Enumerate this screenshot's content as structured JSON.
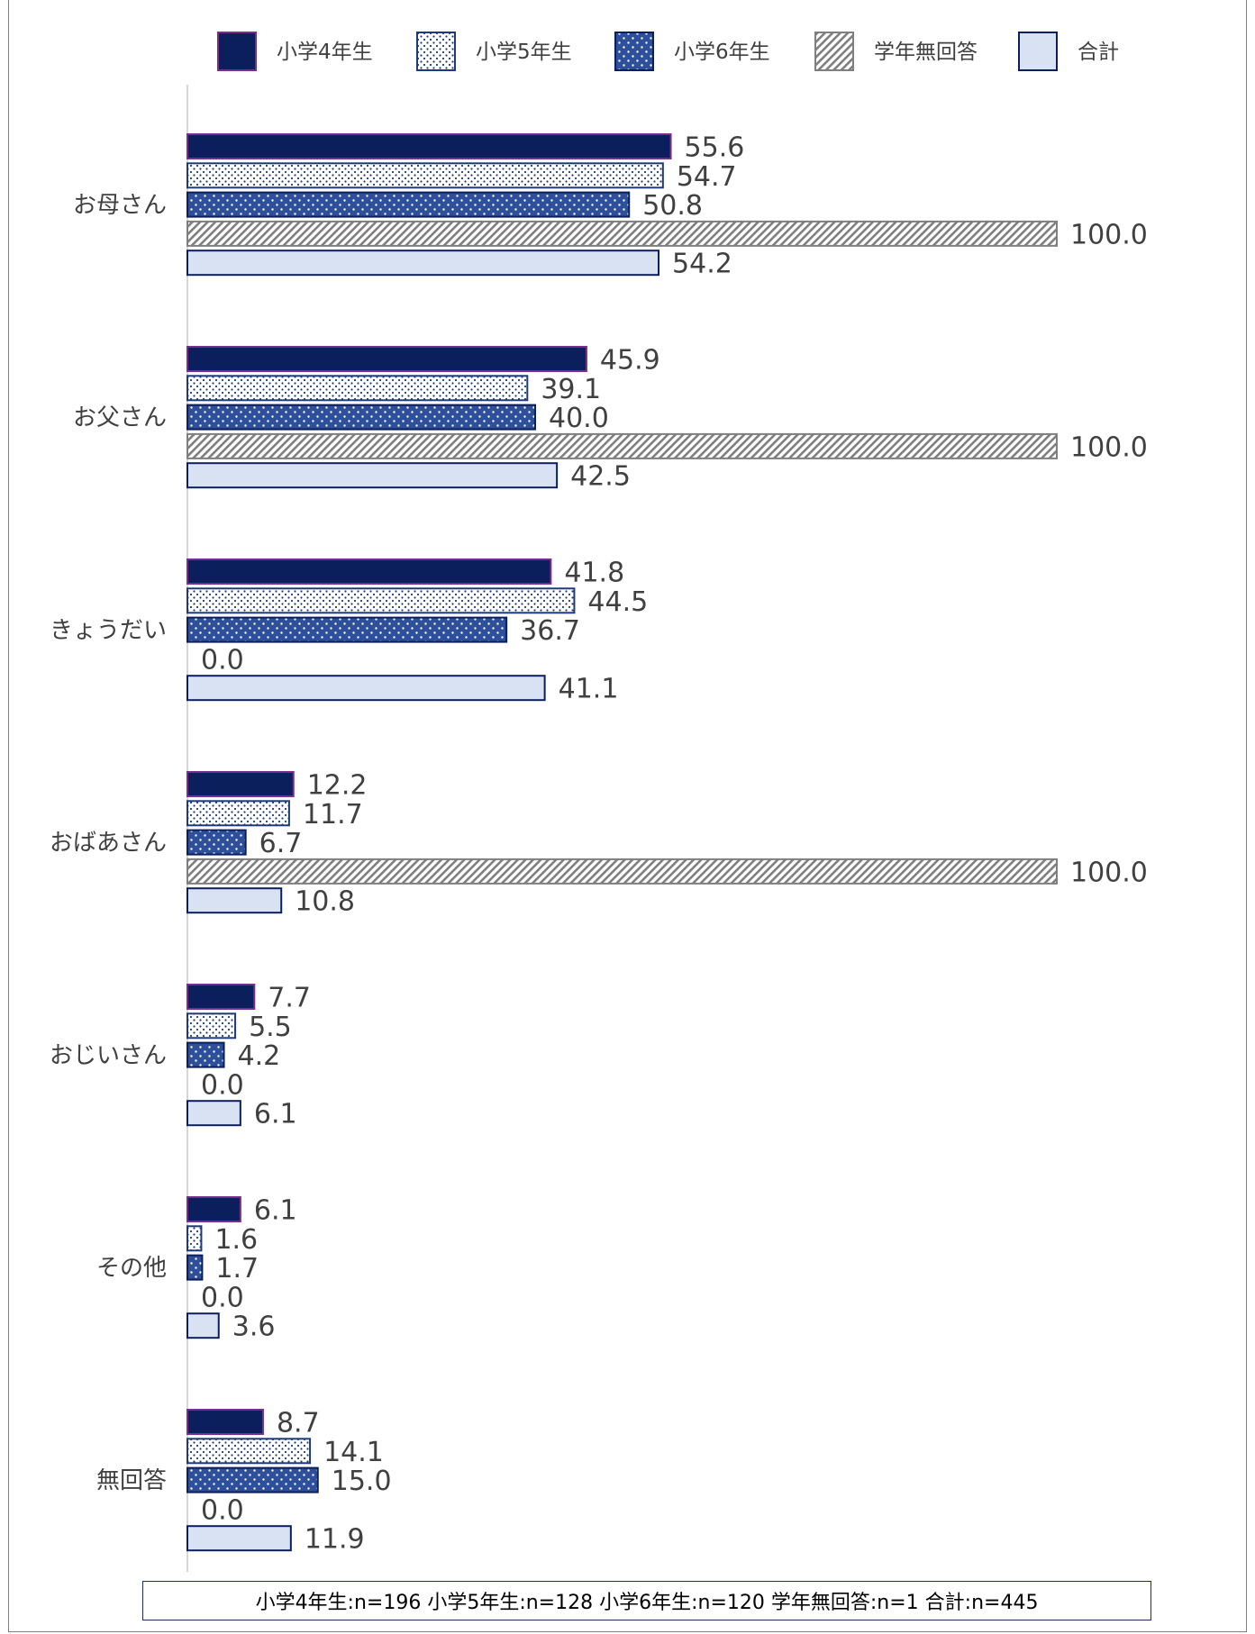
{
  "chart_data": {
    "type": "bar",
    "orientation": "horizontal",
    "categories": [
      "お母さん",
      "お父さん",
      "きょうだい",
      "おばあさん",
      "おじいさん",
      "その他",
      "無回答"
    ],
    "series": [
      {
        "name": "小学4年生",
        "values": [
          55.6,
          45.9,
          41.8,
          12.2,
          7.7,
          6.1,
          8.7
        ],
        "labels": [
          "55.6",
          "45.9",
          "41.8",
          "12.2",
          "7.7",
          "6.1",
          "8.7"
        ],
        "pattern": "solid",
        "fill": "#0a1f5c",
        "stroke": "#7a2d8a"
      },
      {
        "name": "小学5年生",
        "values": [
          54.7,
          39.1,
          44.5,
          11.7,
          5.5,
          1.6,
          14.1
        ],
        "labels": [
          "54.7",
          "39.1",
          "44.5",
          "11.7",
          "5.5",
          "1.6",
          "14.1"
        ],
        "pattern": "dots-on-white",
        "fill": "#ffffff",
        "stroke": "#1f3a7a"
      },
      {
        "name": "小学6年生",
        "values": [
          50.8,
          40.0,
          36.7,
          6.7,
          4.2,
          1.7,
          15.0
        ],
        "labels": [
          "50.8",
          "40.0",
          "36.7",
          "6.7",
          "4.2",
          "1.7",
          "15.0"
        ],
        "pattern": "dots-on-blue",
        "fill": "#2e4f9a",
        "stroke": "#0a1f5c"
      },
      {
        "name": "学年無回答",
        "values": [
          100.0,
          100.0,
          0.0,
          100.0,
          0.0,
          0.0,
          0.0
        ],
        "labels": [
          "100.0",
          "100.0",
          "0.0",
          "100.0",
          "0.0",
          "0.0",
          "0.0"
        ],
        "pattern": "diagonal-hatch",
        "fill": "#ffffff",
        "stroke": "#7f7f7f"
      },
      {
        "name": "合計",
        "values": [
          54.2,
          42.5,
          41.1,
          10.8,
          6.1,
          3.6,
          11.9
        ],
        "labels": [
          "54.2",
          "42.5",
          "41.1",
          "10.8",
          "6.1",
          "3.6",
          "11.9"
        ],
        "pattern": "solid",
        "fill": "#d9e2f3",
        "stroke": "#0a1f5c"
      }
    ],
    "xlim": [
      0,
      100
    ],
    "legend": "top",
    "grid": false
  },
  "footnote": "小学4年生:n=196 小学5年生:n=128 小学6年生:n=120 学年無回答:n=1 合計:n=445",
  "colors": {
    "navy": "#0a1f5c",
    "blue": "#2e4f9a",
    "light_blue": "#d9e2f3",
    "hatch_gray": "#7f7f7f",
    "axis": "#c8c8c8"
  }
}
